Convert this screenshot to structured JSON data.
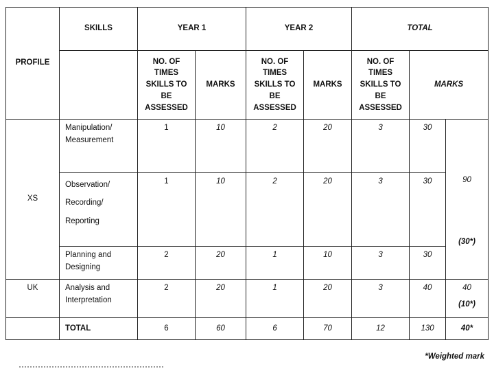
{
  "header": {
    "profile": "PROFILE",
    "skills": "SKILLS",
    "year1": "YEAR 1",
    "year2": "YEAR 2",
    "total": "TOTAL",
    "times": [
      "NO. OF",
      "TIMES",
      "SKILLS TO",
      "BE",
      "ASSESSED"
    ],
    "marks": "MARKS"
  },
  "rows": [
    {
      "profile": "XS",
      "skill": [
        "Manipulation/",
        "Measurement"
      ],
      "y1_times": "1",
      "y1_marks": "10",
      "y2_times": "2",
      "y2_marks": "20",
      "t_times": "3",
      "t_marks": "30"
    },
    {
      "skill": [
        "Observation/",
        "Recording/",
        "Reporting"
      ],
      "y1_times": "1",
      "y1_marks": "10",
      "y2_times": "2",
      "y2_marks": "20",
      "t_times": "3",
      "t_marks": "30"
    },
    {
      "skill": [
        "Planning and",
        "Designing"
      ],
      "y1_times": "2",
      "y1_marks": "20",
      "y2_times": "1",
      "y2_marks": "10",
      "t_times": "3",
      "t_marks": "30"
    },
    {
      "profile": "UK",
      "skill": [
        "Analysis and",
        "Interpretation"
      ],
      "y1_times": "2",
      "y1_marks": "20",
      "y2_times": "1",
      "y2_marks": "20",
      "t_times": "3",
      "t_marks": "40"
    }
  ],
  "xs_weighted": {
    "raw": "90",
    "weighted": "(30*)"
  },
  "uk_weighted": {
    "raw": "40",
    "weighted": "(10*)"
  },
  "totals": {
    "label": "TOTAL",
    "y1_times": "6",
    "y1_marks": "60",
    "y2_times": "6",
    "y2_marks": "70",
    "t_times": "12",
    "t_marks": "130",
    "weighted": "40*"
  },
  "footnote": "*Weighted mark"
}
